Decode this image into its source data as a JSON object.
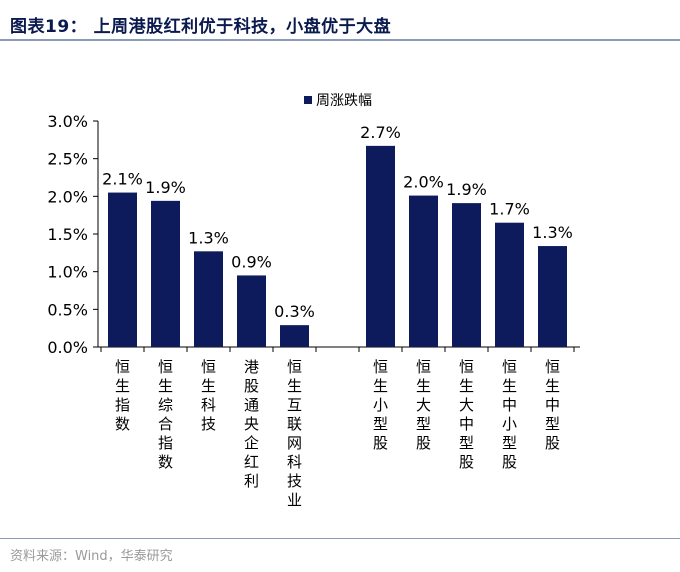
{
  "figure": {
    "title": "图表19：  上周港股红利优于科技，小盘优于大盘",
    "source": "资料来源：Wind，华泰研究"
  },
  "colors": {
    "bar": "#0d1a5c",
    "axis": "#000000"
  },
  "chart_data": {
    "type": "bar",
    "title": "",
    "xlabel": "",
    "ylabel": "",
    "ylim": [
      0,
      3.0
    ],
    "y_ticks": [
      "0.0%",
      "0.5%",
      "1.0%",
      "1.5%",
      "2.0%",
      "2.5%",
      "3.0%"
    ],
    "y_tick_values": [
      0,
      0.5,
      1.0,
      1.5,
      2.0,
      2.5,
      3.0
    ],
    "legend": [
      "周涨跌幅"
    ],
    "legend_position": "top",
    "grid": false,
    "groups": [
      {
        "categories": [
          "恒生指数",
          "恒生综合指数",
          "恒生科技",
          "港股通央企红利",
          "恒生互联网科技业"
        ],
        "values": [
          2.05,
          1.94,
          1.27,
          0.95,
          0.29
        ],
        "labels": [
          "2.1%",
          "1.9%",
          "1.3%",
          "0.9%",
          "0.3%"
        ]
      },
      {
        "categories": [
          "恒生小型股",
          "恒生大型股",
          "恒生大中型股",
          "恒生中小型股",
          "恒生中型股"
        ],
        "values": [
          2.67,
          2.01,
          1.91,
          1.65,
          1.34
        ],
        "labels": [
          "2.7%",
          "2.0%",
          "1.9%",
          "1.7%",
          "1.3%"
        ]
      }
    ]
  }
}
